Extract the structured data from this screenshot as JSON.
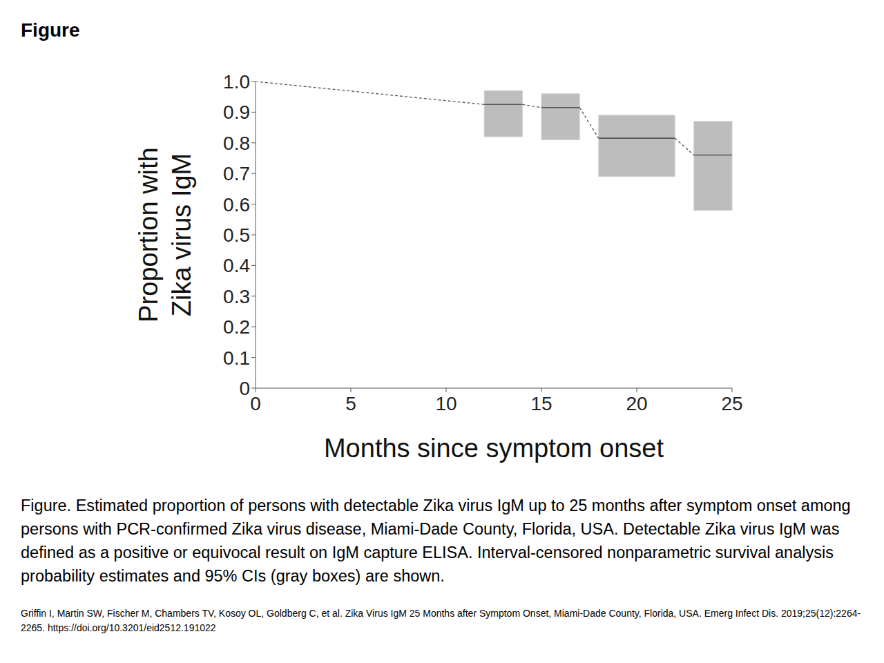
{
  "header": {
    "title": "Figure"
  },
  "chart_data": {
    "type": "step",
    "xlabel": "Months since symptom onset",
    "ylabel": "Proportion with\nZika virus IgM",
    "xlim": [
      0,
      25
    ],
    "ylim": [
      0,
      1
    ],
    "xticks": [
      0,
      5,
      10,
      15,
      20,
      25
    ],
    "yticks": [
      0,
      0.1,
      0.2,
      0.3,
      0.4,
      0.5,
      0.6,
      0.7,
      0.8,
      0.9,
      {
        "value": 1,
        "label": "1.0"
      }
    ],
    "color": "#555555",
    "start": {
      "x": 0,
      "y": 1
    },
    "intervals": [
      {
        "x_start": 12,
        "x_end": 14,
        "estimate": 0.925,
        "ci_lower": 0.82,
        "ci_upper": 0.97
      },
      {
        "x_start": 15,
        "x_end": 17,
        "estimate": 0.915,
        "ci_lower": 0.81,
        "ci_upper": 0.96
      },
      {
        "x_start": 18,
        "x_end": 22,
        "estimate": 0.815,
        "ci_lower": 0.69,
        "ci_upper": 0.89
      },
      {
        "x_start": 23,
        "x_end": 25,
        "estimate": 0.76,
        "ci_lower": 0.58,
        "ci_upper": 0.87
      }
    ]
  },
  "caption": "Figure. Estimated proportion of persons with detectable Zika virus IgM up to 25 months after symptom onset among persons with PCR-confirmed Zika virus disease, Miami-Dade County, Florida, USA. Detectable Zika virus IgM was defined as a positive or equivocal result on IgM capture ELISA. Interval-censored nonparametric survival analysis probability estimates and 95% CIs (gray boxes) are shown.",
  "citation": "Griffin I, Martin SW, Fischer M, Chambers TV, Kosoy OL, Goldberg C, et al. Zika Virus IgM 25 Months after Symptom Onset, Miami-Dade County, Florida, USA. Emerg Infect Dis. 2019;25(12):2264-2265. https://doi.org/10.3201/eid2512.191022"
}
